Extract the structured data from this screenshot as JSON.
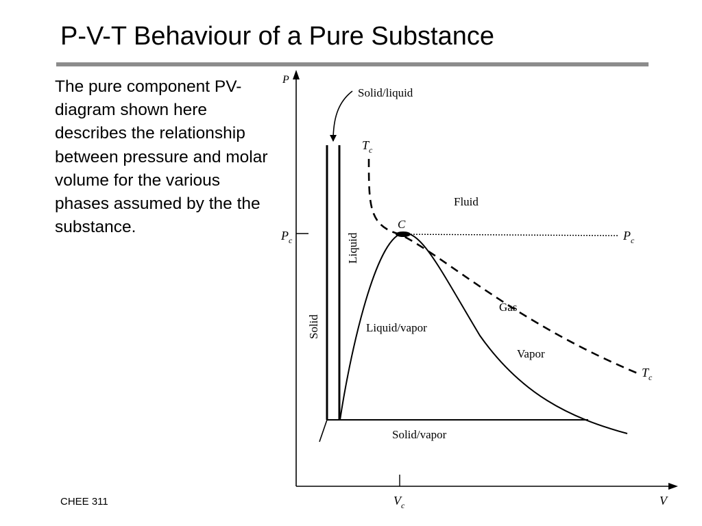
{
  "slide": {
    "title": "P-V-T Behaviour of a Pure Substance",
    "body": "The pure component PV-diagram shown here describes the relationship between pressure and molar volume for the various phases assumed by the the substance.",
    "footer": "CHEE 311"
  },
  "diagram": {
    "axis_p": "P",
    "axis_v": "V",
    "pc_main": "P",
    "pc_sub": "c",
    "vc_main": "V",
    "vc_sub": "c",
    "tc_main": "T",
    "tc_sub": "c",
    "critical_point": "C",
    "labels": {
      "solid_liquid": "Solid/liquid",
      "fluid": "Fluid",
      "liquid": "Liquid",
      "solid": "Solid",
      "liquid_vapor": "Liquid/vapor",
      "gas": "Gas",
      "vapor": "Vapor",
      "solid_vapor": "Solid/vapor"
    }
  }
}
